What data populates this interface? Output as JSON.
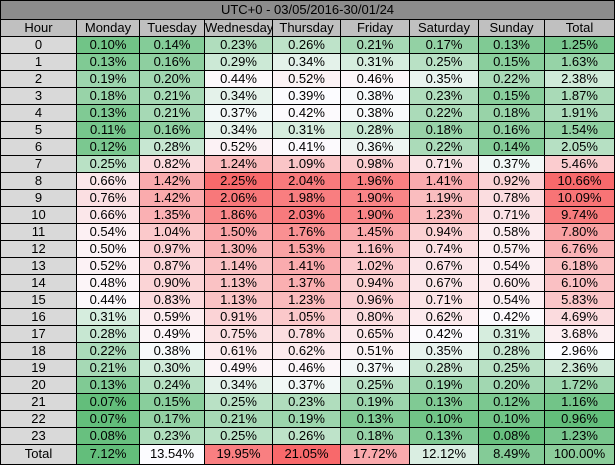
{
  "title": "UTC+0 - 03/05/2016-30/01/24",
  "table": {
    "header": [
      "Hour",
      "Monday",
      "Tuesday",
      "Wednesday",
      "Thursday",
      "Friday",
      "Saturday",
      "Sunday",
      "Total"
    ],
    "rows": [
      [
        "0",
        "0.10%",
        "0.14%",
        "0.23%",
        "0.26%",
        "0.21%",
        "0.17%",
        "0.13%",
        "1.25%"
      ],
      [
        "1",
        "0.13%",
        "0.16%",
        "0.29%",
        "0.34%",
        "0.31%",
        "0.25%",
        "0.15%",
        "1.63%"
      ],
      [
        "2",
        "0.19%",
        "0.20%",
        "0.44%",
        "0.52%",
        "0.46%",
        "0.35%",
        "0.22%",
        "2.38%"
      ],
      [
        "3",
        "0.18%",
        "0.21%",
        "0.34%",
        "0.39%",
        "0.38%",
        "0.23%",
        "0.15%",
        "1.87%"
      ],
      [
        "4",
        "0.13%",
        "0.21%",
        "0.37%",
        "0.42%",
        "0.38%",
        "0.22%",
        "0.18%",
        "1.91%"
      ],
      [
        "5",
        "0.11%",
        "0.16%",
        "0.34%",
        "0.31%",
        "0.28%",
        "0.18%",
        "0.16%",
        "1.54%"
      ],
      [
        "6",
        "0.12%",
        "0.28%",
        "0.52%",
        "0.41%",
        "0.36%",
        "0.22%",
        "0.14%",
        "2.05%"
      ],
      [
        "7",
        "0.25%",
        "0.82%",
        "1.24%",
        "1.09%",
        "0.98%",
        "0.71%",
        "0.37%",
        "5.46%"
      ],
      [
        "8",
        "0.66%",
        "1.42%",
        "2.25%",
        "2.04%",
        "1.96%",
        "1.41%",
        "0.92%",
        "10.66%"
      ],
      [
        "9",
        "0.76%",
        "1.42%",
        "2.06%",
        "1.98%",
        "1.90%",
        "1.19%",
        "0.78%",
        "10.09%"
      ],
      [
        "10",
        "0.66%",
        "1.35%",
        "1.86%",
        "2.03%",
        "1.90%",
        "1.23%",
        "0.71%",
        "9.74%"
      ],
      [
        "11",
        "0.54%",
        "1.04%",
        "1.50%",
        "1.76%",
        "1.45%",
        "0.94%",
        "0.58%",
        "7.80%"
      ],
      [
        "12",
        "0.50%",
        "0.97%",
        "1.30%",
        "1.53%",
        "1.16%",
        "0.74%",
        "0.57%",
        "6.76%"
      ],
      [
        "13",
        "0.52%",
        "0.87%",
        "1.14%",
        "1.41%",
        "1.02%",
        "0.67%",
        "0.54%",
        "6.18%"
      ],
      [
        "14",
        "0.48%",
        "0.90%",
        "1.13%",
        "1.37%",
        "0.94%",
        "0.67%",
        "0.60%",
        "6.10%"
      ],
      [
        "15",
        "0.44%",
        "0.83%",
        "1.13%",
        "1.23%",
        "0.96%",
        "0.71%",
        "0.54%",
        "5.83%"
      ],
      [
        "16",
        "0.31%",
        "0.59%",
        "0.91%",
        "1.05%",
        "0.80%",
        "0.62%",
        "0.42%",
        "4.69%"
      ],
      [
        "17",
        "0.28%",
        "0.49%",
        "0.75%",
        "0.78%",
        "0.65%",
        "0.42%",
        "0.31%",
        "3.68%"
      ],
      [
        "18",
        "0.22%",
        "0.38%",
        "0.61%",
        "0.62%",
        "0.51%",
        "0.35%",
        "0.28%",
        "2.96%"
      ],
      [
        "19",
        "0.21%",
        "0.30%",
        "0.49%",
        "0.46%",
        "0.37%",
        "0.28%",
        "0.25%",
        "2.36%"
      ],
      [
        "20",
        "0.13%",
        "0.24%",
        "0.34%",
        "0.37%",
        "0.25%",
        "0.19%",
        "0.20%",
        "1.72%"
      ],
      [
        "21",
        "0.07%",
        "0.15%",
        "0.25%",
        "0.23%",
        "0.19%",
        "0.13%",
        "0.12%",
        "1.16%"
      ],
      [
        "22",
        "0.07%",
        "0.17%",
        "0.21%",
        "0.19%",
        "0.13%",
        "0.10%",
        "0.10%",
        "0.96%"
      ],
      [
        "23",
        "0.08%",
        "0.23%",
        "0.25%",
        "0.26%",
        "0.18%",
        "0.13%",
        "0.08%",
        "1.23%"
      ],
      [
        "Total",
        "7.12%",
        "13.54%",
        "19.95%",
        "21.05%",
        "17.72%",
        "12.12%",
        "8.49%",
        "100.00%"
      ]
    ]
  }
}
